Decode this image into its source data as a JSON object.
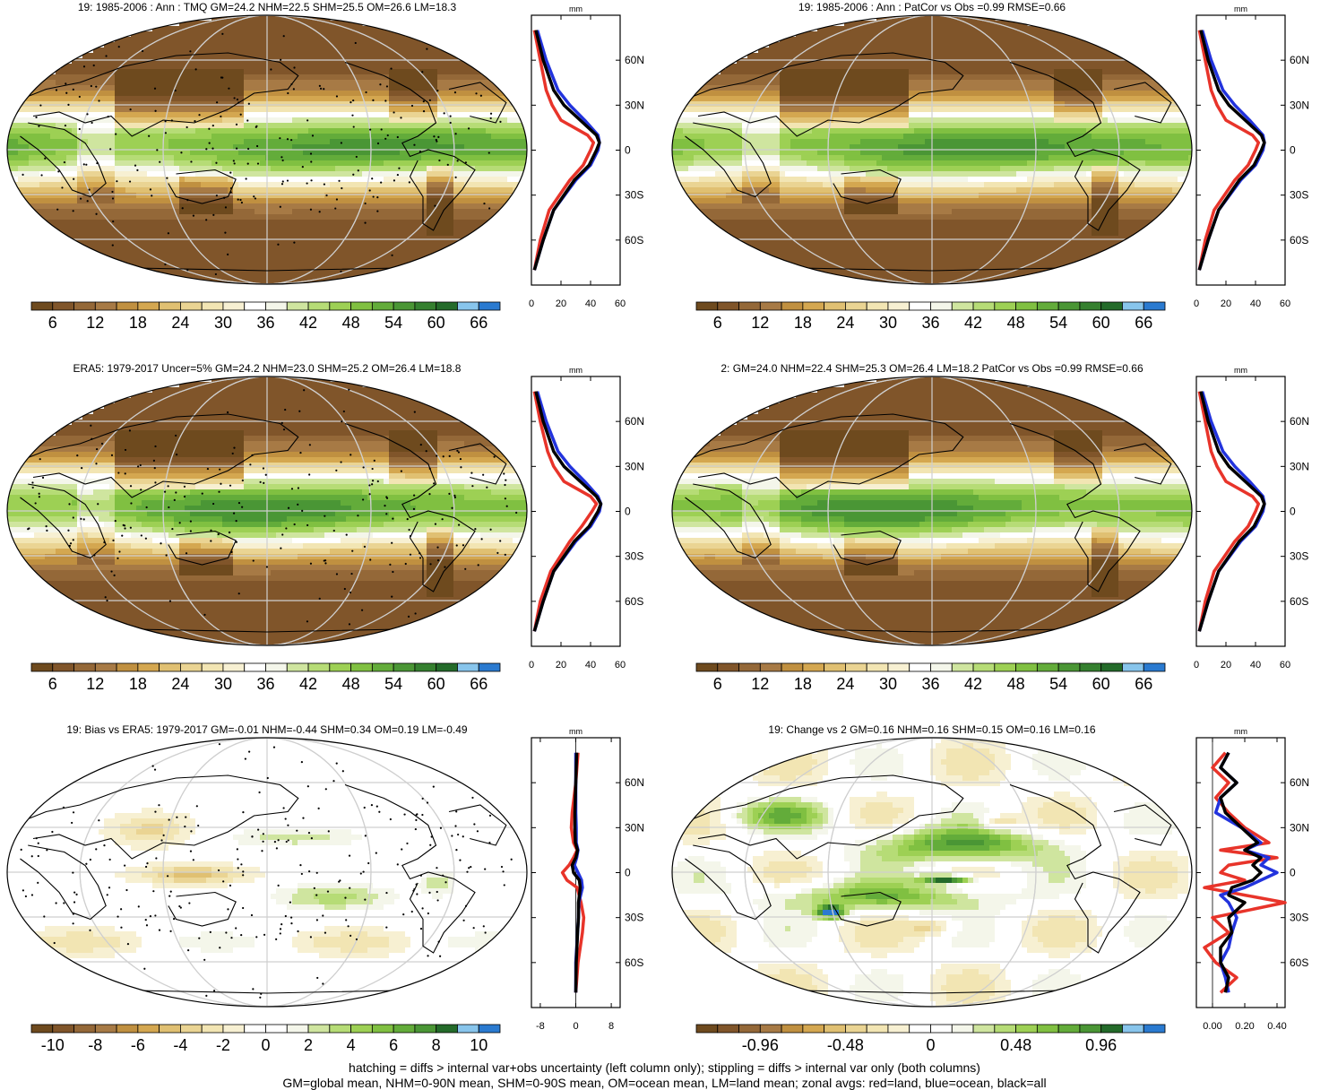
{
  "panels": [
    {
      "id": "model-19",
      "title": "19: 1985-2006 : Ann : TMQ GM=24.2 NHM=22.5 SHM=25.5 OM=26.6 LM=18.3",
      "field": "tmq",
      "stipple": true,
      "colorbar": {
        "labels": [
          "6",
          "12",
          "18",
          "24",
          "30",
          "36",
          "42",
          "48",
          "54",
          "60",
          "66"
        ]
      },
      "profile_ticks": [
        "0",
        "20",
        "40",
        "60"
      ],
      "profile_unit": "mm"
    },
    {
      "id": "model-19-patcor",
      "title": "19: 1985-2006 : Ann : PatCor vs Obs =0.99 RMSE=0.66",
      "field": "tmq",
      "stipple": false,
      "colorbar": {
        "labels": [
          "6",
          "12",
          "18",
          "24",
          "30",
          "36",
          "42",
          "48",
          "54",
          "60",
          "66"
        ]
      },
      "profile_ticks": [
        "0",
        "20",
        "40",
        "60"
      ],
      "profile_unit": "mm"
    },
    {
      "id": "era5",
      "title": "ERA5: 1979-2017 Uncer=5% GM=24.2 NHM=23.0 SHM=25.2 OM=26.4 LM=18.8",
      "field": "tmq",
      "stipple": true,
      "colorbar": {
        "labels": [
          "6",
          "12",
          "18",
          "24",
          "30",
          "36",
          "42",
          "48",
          "54",
          "60",
          "66"
        ]
      },
      "profile_ticks": [
        "0",
        "20",
        "40",
        "60"
      ],
      "profile_unit": "mm"
    },
    {
      "id": "model-2",
      "title": "2: GM=24.0 NHM=22.4 SHM=25.3 OM=26.4 LM=18.2 PatCor vs Obs =0.99 RMSE=0.66",
      "field": "tmq",
      "stipple": false,
      "colorbar": {
        "labels": [
          "6",
          "12",
          "18",
          "24",
          "30",
          "36",
          "42",
          "48",
          "54",
          "60",
          "66"
        ]
      },
      "profile_ticks": [
        "0",
        "20",
        "40",
        "60"
      ],
      "profile_unit": "mm"
    },
    {
      "id": "bias",
      "title": "19: Bias vs ERA5: 1979-2017 GM=-0.01 NHM=-0.44 SHM=0.34 OM=0.19 LM=-0.49",
      "field": "bias",
      "stipple": true,
      "colorbar": {
        "labels": [
          "-10",
          "-8",
          "-6",
          "-4",
          "-2",
          "0",
          "2",
          "4",
          "6",
          "8",
          "10"
        ]
      },
      "profile_ticks": [
        "-8",
        "0",
        "8"
      ],
      "profile_unit": "mm"
    },
    {
      "id": "change",
      "title": "19: Change vs 2 GM=0.16 NHM=0.16 SHM=0.15 OM=0.16 LM=0.16",
      "field": "change",
      "stipple": false,
      "colorbar": {
        "labels": [
          "-0.96",
          "-0.48",
          "0",
          "0.48",
          "0.96"
        ]
      },
      "profile_ticks": [
        "0.00",
        "0.20",
        "0.40"
      ],
      "profile_unit": "mm"
    }
  ],
  "lat_ticks": [
    "60N",
    "30N",
    "0",
    "30S",
    "60S"
  ],
  "footer": {
    "line1": "hatching = diffs > internal var+obs uncertainty (left column only); stippling = diffs > internal var only (both columns)",
    "line2": "GM=global mean, NHM=0-90N mean, SHM=0-90S mean, OM=ocean mean, LM=land mean; zonal avgs: red=land, blue=ocean, black=all"
  },
  "colors": {
    "tmq_palette": [
      "#6e4a1e",
      "#80552a",
      "#946838",
      "#a77a45",
      "#c09040",
      "#d4a750",
      "#e0c072",
      "#ead493",
      "#f2e5b3",
      "#f7f0d2",
      "#ffffff",
      "#f4f6ea",
      "#cfe59f",
      "#b6dc76",
      "#9dd054",
      "#80c041",
      "#63ac3a",
      "#4a9635",
      "#35802f",
      "#246b2a",
      "#88c5ec",
      "#2a7ad0"
    ],
    "diff_palette": [
      "#6e4a1e",
      "#80552a",
      "#946838",
      "#a77a45",
      "#c09040",
      "#d4a750",
      "#e0c072",
      "#ead493",
      "#f2e5b3",
      "#f7f0d2",
      "#ffffff",
      "#ffffff",
      "#f4f6ea",
      "#cfe59f",
      "#b6dc76",
      "#9dd054",
      "#80c041",
      "#63ac3a",
      "#4a9635",
      "#246b2a",
      "#88c5ec",
      "#2a7ad0"
    ],
    "land": "#e8342a",
    "ocean": "#2233dd",
    "all": "#000000"
  },
  "chart_data": [
    {
      "type": "line",
      "panel": "model-19",
      "xlabel": "mm",
      "xlim": [
        0,
        60
      ],
      "ylim": [
        -90,
        90
      ],
      "lat": [
        -80,
        -60,
        -40,
        -20,
        -10,
        0,
        5,
        10,
        20,
        30,
        40,
        60,
        80
      ],
      "series": [
        {
          "name": "red=land",
          "values": [
            2,
            6,
            12,
            26,
            35,
            40,
            42,
            38,
            20,
            14,
            10,
            6,
            2
          ]
        },
        {
          "name": "blue=ocean",
          "values": [
            2,
            8,
            15,
            30,
            40,
            45,
            46,
            45,
            36,
            26,
            18,
            10,
            4
          ]
        },
        {
          "name": "black=all",
          "values": [
            2,
            8,
            15,
            29,
            39,
            44,
            46,
            44,
            33,
            22,
            15,
            8,
            3
          ]
        }
      ]
    },
    {
      "type": "line",
      "panel": "model-19-patcor",
      "xlabel": "mm",
      "xlim": [
        0,
        60
      ],
      "ylim": [
        -90,
        90
      ],
      "lat": [
        -80,
        -60,
        -40,
        -20,
        -10,
        0,
        5,
        10,
        20,
        30,
        40,
        60,
        80
      ],
      "series": [
        {
          "name": "red=land",
          "values": [
            2,
            6,
            12,
            26,
            35,
            40,
            42,
            38,
            20,
            14,
            10,
            6,
            2
          ]
        },
        {
          "name": "blue=ocean",
          "values": [
            2,
            8,
            15,
            30,
            40,
            45,
            46,
            45,
            36,
            26,
            18,
            10,
            4
          ]
        },
        {
          "name": "black=all",
          "values": [
            2,
            8,
            15,
            29,
            39,
            44,
            46,
            44,
            33,
            22,
            15,
            8,
            3
          ]
        }
      ]
    },
    {
      "type": "line",
      "panel": "era5",
      "xlabel": "mm",
      "xlim": [
        0,
        60
      ],
      "ylim": [
        -90,
        90
      ],
      "lat": [
        -80,
        -60,
        -40,
        -20,
        -10,
        0,
        5,
        10,
        20,
        30,
        40,
        60,
        80
      ],
      "series": [
        {
          "name": "red=land",
          "values": [
            2,
            6,
            13,
            26,
            34,
            41,
            44,
            40,
            22,
            15,
            11,
            6,
            2
          ]
        },
        {
          "name": "blue=ocean",
          "values": [
            2,
            8,
            15,
            30,
            40,
            46,
            47,
            45,
            36,
            26,
            18,
            10,
            4
          ]
        },
        {
          "name": "black=all",
          "values": [
            2,
            8,
            15,
            29,
            39,
            45,
            47,
            44,
            33,
            22,
            15,
            8,
            3
          ]
        }
      ]
    },
    {
      "type": "line",
      "panel": "model-2",
      "xlabel": "mm",
      "xlim": [
        0,
        60
      ],
      "ylim": [
        -90,
        90
      ],
      "lat": [
        -80,
        -60,
        -40,
        -20,
        -10,
        0,
        5,
        10,
        20,
        30,
        40,
        60,
        80
      ],
      "series": [
        {
          "name": "red=land",
          "values": [
            2,
            6,
            12,
            26,
            35,
            40,
            42,
            38,
            20,
            14,
            10,
            6,
            2
          ]
        },
        {
          "name": "blue=ocean",
          "values": [
            2,
            8,
            15,
            30,
            40,
            45,
            46,
            45,
            36,
            26,
            18,
            10,
            4
          ]
        },
        {
          "name": "black=all",
          "values": [
            2,
            8,
            15,
            29,
            39,
            44,
            46,
            44,
            33,
            22,
            15,
            8,
            3
          ]
        }
      ]
    },
    {
      "type": "line",
      "panel": "bias",
      "xlabel": "mm",
      "xlim": [
        -10,
        10
      ],
      "ylim": [
        -90,
        90
      ],
      "lat": [
        -80,
        -60,
        -40,
        -30,
        -20,
        -10,
        -5,
        0,
        5,
        10,
        15,
        20,
        30,
        40,
        60,
        80
      ],
      "series": [
        {
          "name": "red=land",
          "values": [
            0,
            0.5,
            1.5,
            1.8,
            1.2,
            0.3,
            -2,
            -3,
            -1.5,
            -0.5,
            0.3,
            -0.5,
            -1,
            -0.8,
            0,
            0.5
          ]
        },
        {
          "name": "blue=ocean",
          "values": [
            0,
            0,
            0.4,
            0.6,
            0.7,
            1.5,
            1.3,
            0.5,
            -0.3,
            0.2,
            0.5,
            0.1,
            0.1,
            0,
            0,
            0
          ]
        },
        {
          "name": "black=all",
          "values": [
            0,
            0.1,
            0.4,
            0.6,
            0.6,
            1,
            0.8,
            -0.5,
            -0.8,
            0,
            0.4,
            -0.1,
            -0.2,
            -0.2,
            0,
            0.2
          ]
        }
      ]
    },
    {
      "type": "line",
      "panel": "change",
      "xlabel": "mm",
      "xlim": [
        -0.1,
        0.45
      ],
      "ylim": [
        -90,
        90
      ],
      "lat": [
        -80,
        -70,
        -60,
        -50,
        -40,
        -30,
        -20,
        -15,
        -10,
        -5,
        0,
        5,
        10,
        15,
        20,
        30,
        40,
        50,
        60,
        70,
        80
      ],
      "series": [
        {
          "name": "red=land",
          "values": [
            0.05,
            0.15,
            0.02,
            -0.05,
            0.1,
            0.0,
            0.45,
            0.2,
            -0.05,
            0.2,
            0.05,
            0.1,
            0.4,
            0.05,
            0.35,
            0.2,
            0.1,
            0.02,
            0.1,
            0.0,
            0.08
          ]
        },
        {
          "name": "blue=ocean",
          "values": [
            0.1,
            0.08,
            0.05,
            0.1,
            0.12,
            0.15,
            0.1,
            0.05,
            0.2,
            0.3,
            0.4,
            0.3,
            0.35,
            0.2,
            0.3,
            0.18,
            0.02,
            0.05,
            0.15,
            0.05,
            0.1
          ]
        },
        {
          "name": "black=all",
          "values": [
            0.08,
            0.1,
            0.05,
            0.05,
            0.12,
            0.1,
            0.2,
            0.1,
            0.12,
            0.25,
            0.3,
            0.25,
            0.3,
            0.2,
            0.28,
            0.18,
            0.08,
            0.05,
            0.15,
            0.05,
            0.1
          ]
        }
      ]
    }
  ]
}
